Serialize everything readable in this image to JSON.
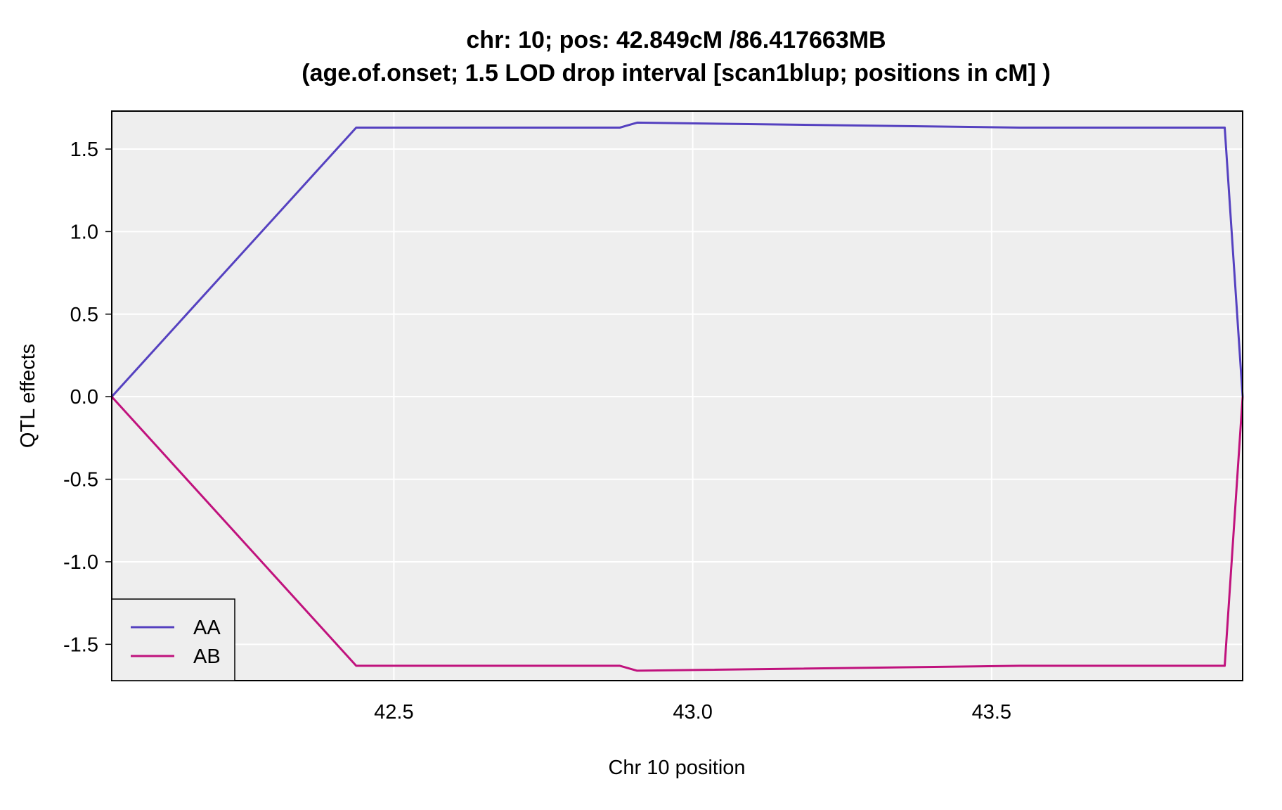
{
  "chart_data": {
    "type": "line",
    "title": "chr: 10; pos: 42.849cM /86.417663MB",
    "subtitle": "(age.of.onset; 1.5 LOD drop interval [scan1blup; positions in cM] )",
    "xlabel": "Chr 10 position",
    "ylabel": "QTL effects",
    "xlim": [
      42.028,
      43.92
    ],
    "ylim": [
      -1.72,
      1.73
    ],
    "xticks": [
      42.5,
      43.0,
      43.5
    ],
    "xtick_labels": [
      "42.5",
      "43.0",
      "43.5"
    ],
    "yticks": [
      1.5,
      1.0,
      0.5,
      0.0,
      -0.5,
      -1.0,
      -1.5
    ],
    "ytick_labels": [
      "1.5",
      "1.0",
      "0.5",
      "0.0",
      "-0.5",
      "-1.0",
      "-1.5"
    ],
    "grid": true,
    "legend_position": "bottom-left",
    "background": "#eeeeee",
    "series": [
      {
        "name": "AA",
        "color": "#5541c0",
        "x": [
          42.028,
          42.437,
          42.878,
          42.907,
          43.547,
          43.578,
          43.686,
          43.89,
          43.92
        ],
        "y": [
          0.0,
          1.63,
          1.63,
          1.66,
          1.63,
          1.63,
          1.63,
          1.63,
          0.0
        ]
      },
      {
        "name": "AB",
        "color": "#c0127d",
        "x": [
          42.028,
          42.437,
          42.878,
          42.907,
          43.547,
          43.578,
          43.686,
          43.89,
          43.92
        ],
        "y": [
          0.0,
          -1.63,
          -1.63,
          -1.66,
          -1.63,
          -1.63,
          -1.63,
          -1.63,
          0.0
        ]
      }
    ]
  }
}
